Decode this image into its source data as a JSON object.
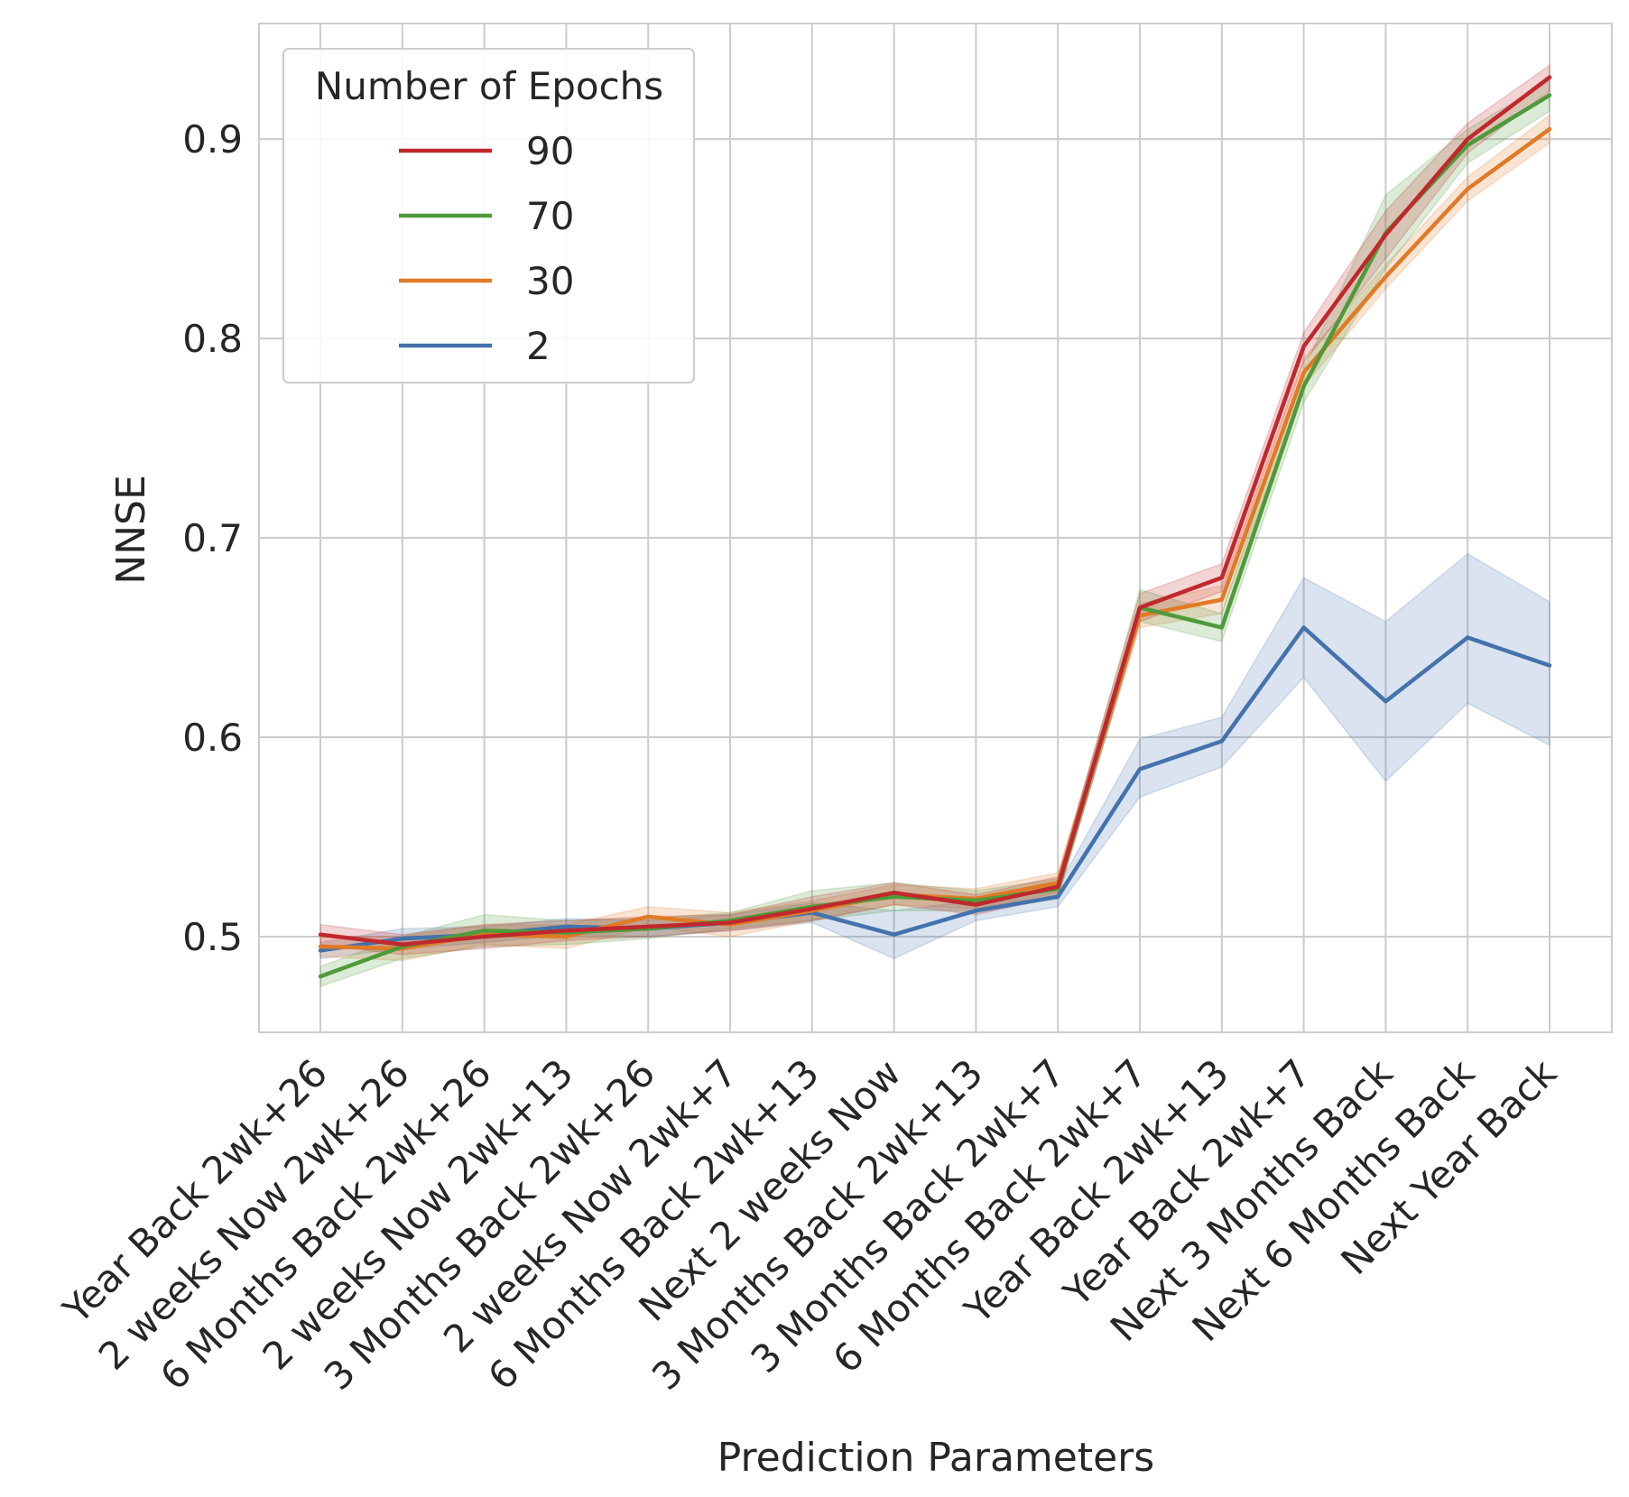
{
  "chart_data": {
    "type": "line",
    "xlabel": "Prediction Parameters",
    "ylabel": "NNSE",
    "ylim": [
      0.452,
      0.958
    ],
    "yticks": [
      "0.5",
      "0.6",
      "0.7",
      "0.8",
      "0.9"
    ],
    "grid": true,
    "legend": {
      "title": "Number of Epochs",
      "placement": "top-left"
    },
    "categories": [
      "Year Back 2wk+26",
      "2 weeks Now 2wk+26",
      "6 Months Back 2wk+26",
      "2 weeks Now 2wk+13",
      "3 Months Back 2wk+26",
      "2 weeks Now 2wk+7",
      "6 Months Back 2wk+13",
      "Next 2 weeks Now",
      "3 Months Back 2wk+13",
      "3 Months Back 2wk+7",
      "6 Months Back 2wk+7",
      "Year Back 2wk+13",
      "Year Back 2wk+7",
      "Next 3 Months Back",
      "Next 6 Months Back",
      "Next Year Back"
    ],
    "series": [
      {
        "name": "90",
        "color": "#c0282d",
        "values": [
          0.501,
          0.496,
          0.5,
          0.503,
          0.505,
          0.507,
          0.514,
          0.522,
          0.516,
          0.525,
          0.665,
          0.68,
          0.796,
          0.852,
          0.9,
          0.931
        ],
        "lower": [
          0.496,
          0.491,
          0.494,
          0.498,
          0.5,
          0.503,
          0.508,
          0.516,
          0.511,
          0.52,
          0.658,
          0.673,
          0.788,
          0.84,
          0.893,
          0.924
        ],
        "upper": [
          0.506,
          0.501,
          0.506,
          0.508,
          0.51,
          0.511,
          0.52,
          0.527,
          0.521,
          0.53,
          0.672,
          0.687,
          0.803,
          0.864,
          0.908,
          0.937
        ]
      },
      {
        "name": "70",
        "color": "#4f9a3a",
        "values": [
          0.48,
          0.495,
          0.503,
          0.502,
          0.504,
          0.508,
          0.515,
          0.52,
          0.518,
          0.524,
          0.665,
          0.655,
          0.776,
          0.853,
          0.897,
          0.922
        ],
        "lower": [
          0.475,
          0.489,
          0.495,
          0.496,
          0.499,
          0.504,
          0.508,
          0.513,
          0.513,
          0.519,
          0.658,
          0.648,
          0.768,
          0.835,
          0.888,
          0.914
        ],
        "upper": [
          0.485,
          0.5,
          0.511,
          0.508,
          0.509,
          0.512,
          0.523,
          0.527,
          0.523,
          0.529,
          0.674,
          0.662,
          0.785,
          0.872,
          0.905,
          0.929
        ]
      },
      {
        "name": "30",
        "color": "#e07a26",
        "values": [
          0.495,
          0.494,
          0.501,
          0.5,
          0.51,
          0.506,
          0.513,
          0.521,
          0.519,
          0.527,
          0.661,
          0.669,
          0.783,
          0.831,
          0.875,
          0.905
        ],
        "lower": [
          0.49,
          0.488,
          0.496,
          0.494,
          0.505,
          0.5,
          0.508,
          0.516,
          0.514,
          0.522,
          0.655,
          0.662,
          0.776,
          0.825,
          0.869,
          0.898
        ],
        "upper": [
          0.5,
          0.5,
          0.506,
          0.506,
          0.515,
          0.512,
          0.518,
          0.526,
          0.524,
          0.532,
          0.667,
          0.676,
          0.79,
          0.837,
          0.881,
          0.912
        ]
      },
      {
        "name": "2",
        "color": "#4472ad",
        "values": [
          0.493,
          0.499,
          0.501,
          0.505,
          0.504,
          0.507,
          0.512,
          0.501,
          0.513,
          0.52,
          0.584,
          0.598,
          0.655,
          0.618,
          0.65,
          0.636
        ],
        "lower": [
          0.489,
          0.494,
          0.497,
          0.501,
          0.5,
          0.503,
          0.507,
          0.489,
          0.508,
          0.515,
          0.57,
          0.585,
          0.63,
          0.578,
          0.617,
          0.596
        ],
        "upper": [
          0.497,
          0.504,
          0.505,
          0.509,
          0.508,
          0.511,
          0.517,
          0.513,
          0.518,
          0.525,
          0.599,
          0.61,
          0.68,
          0.658,
          0.692,
          0.668
        ]
      }
    ]
  }
}
